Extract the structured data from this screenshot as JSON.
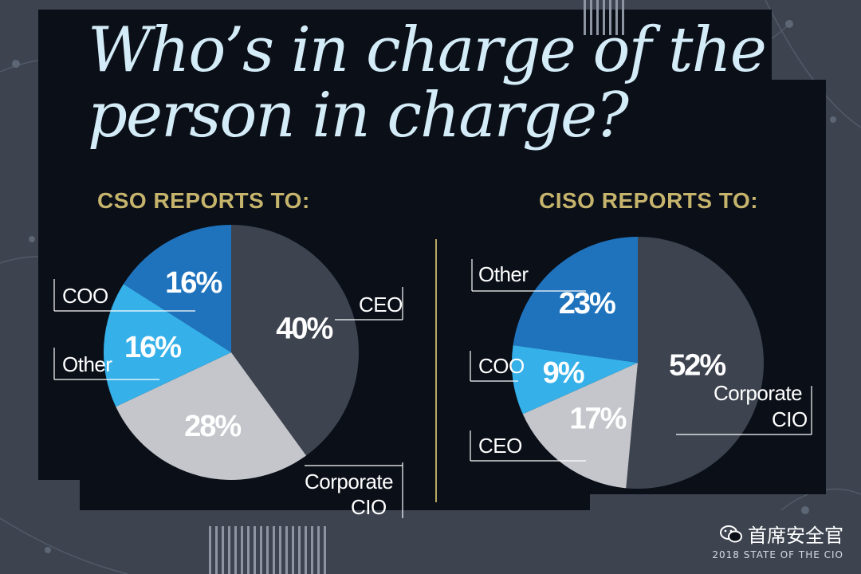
{
  "title": "Who’s in charge of the person in charge?",
  "footer": {
    "brand": "首席安全官",
    "source": "2018 STATE OF THE CIO"
  },
  "colors": {
    "ceo": "#3d4450",
    "corporate_cio": "#c4c6cb",
    "other": "#35b0e9",
    "coo": "#1f73bd",
    "heading": "#c6b46d",
    "title": "#d4ecf7"
  },
  "chart_data": [
    {
      "type": "pie",
      "title": "CSO REPORTS TO:",
      "slices": [
        {
          "label": "CEO",
          "value": 40,
          "value_label": "40%",
          "color": "#3d4450"
        },
        {
          "label": "Corporate CIO",
          "value": 28,
          "value_label": "28%",
          "color": "#c4c6cb"
        },
        {
          "label": "Other",
          "value": 16,
          "value_label": "16%",
          "color": "#35b0e9"
        },
        {
          "label": "COO",
          "value": 16,
          "value_label": "16%",
          "color": "#1f73bd"
        }
      ]
    },
    {
      "type": "pie",
      "title": "CISO REPORTS TO:",
      "slices": [
        {
          "label": "Corporate CIO",
          "value": 52,
          "value_label": "52%",
          "color": "#3d4450"
        },
        {
          "label": "CEO",
          "value": 17,
          "value_label": "17%",
          "color": "#c4c6cb"
        },
        {
          "label": "COO",
          "value": 9,
          "value_label": "9%",
          "color": "#35b0e9"
        },
        {
          "label": "Other",
          "value": 23,
          "value_label": "23%",
          "color": "#1f73bd"
        }
      ]
    }
  ]
}
